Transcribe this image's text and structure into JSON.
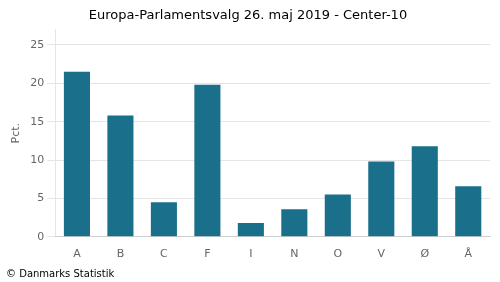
{
  "chart_data": {
    "type": "bar",
    "title": "Europa-Parlamentsvalg 26. maj 2019 - Center-10",
    "categories": [
      "A",
      "B",
      "C",
      "F",
      "I",
      "N",
      "O",
      "V",
      "Ø",
      "Å"
    ],
    "values": [
      21.5,
      15.8,
      4.5,
      19.8,
      1.8,
      3.6,
      5.5,
      9.8,
      11.8,
      6.6
    ],
    "color": "#1a6f8a",
    "ylabel": "Pct.",
    "footer": "© Danmarks Statistik",
    "ylim": [
      0,
      27
    ],
    "yticks": [
      0,
      5,
      10,
      15,
      20,
      25
    ],
    "grid": true
  }
}
